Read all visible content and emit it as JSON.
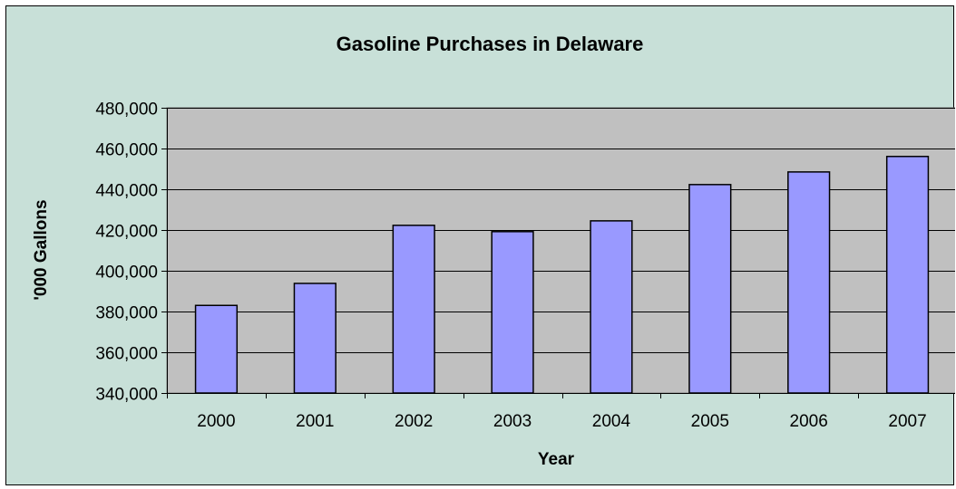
{
  "colors": {
    "background": "#c8e0d8",
    "plot_area": "#c0c0c0",
    "bar_fill": "#9999ff",
    "bar_stroke": "#000000",
    "gridline": "#000000"
  },
  "chart_data": {
    "type": "bar",
    "title": "Gasoline Purchases in Delaware",
    "xlabel": "Year",
    "ylabel": "'000 Gallons",
    "categories": [
      "2000",
      "2001",
      "2002",
      "2003",
      "2004",
      "2005",
      "2006",
      "2007"
    ],
    "values": [
      383000,
      393800,
      422300,
      419200,
      424500,
      442300,
      448500,
      456100
    ],
    "ylim": [
      340000,
      480000
    ],
    "yticks": [
      340000,
      360000,
      380000,
      400000,
      420000,
      440000,
      460000,
      480000
    ],
    "ytick_labels": [
      "340,000",
      "360,000",
      "380,000",
      "400,000",
      "420,000",
      "440,000",
      "460,000",
      "480,000"
    ],
    "grid": true,
    "legend": "none"
  }
}
